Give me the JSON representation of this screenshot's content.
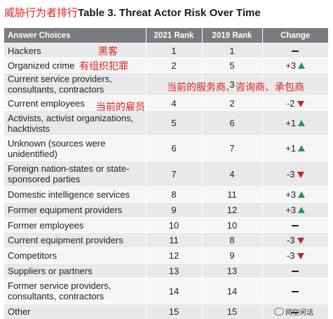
{
  "header": {
    "title_cn": "威胁行为者排行",
    "title_en": "Table 3. Threat Actor Risk Over Time"
  },
  "table": {
    "columns": [
      "Answer Choices",
      "2021 Rank",
      "2019 Rank",
      "Change"
    ],
    "rows": [
      {
        "answer": "Hackers",
        "rank_2021": "1",
        "rank_2019": "1",
        "change": "",
        "direction": "none"
      },
      {
        "answer": "Organized crime",
        "rank_2021": "2",
        "rank_2019": "5",
        "change": "+3",
        "direction": "up"
      },
      {
        "answer": "Current service providers, consultants, contractors",
        "rank_2021": "",
        "rank_2019": "3",
        "change": "",
        "direction": "hidden"
      },
      {
        "answer": "Current employees",
        "rank_2021": "4",
        "rank_2019": "2",
        "change": "-2",
        "direction": "down"
      },
      {
        "answer": "Activists, activist organizations, hacktivists",
        "rank_2021": "5",
        "rank_2019": "6",
        "change": "+1",
        "direction": "up"
      },
      {
        "answer": "Unknown (sources were unidentified)",
        "rank_2021": "6",
        "rank_2019": "7",
        "change": "+1",
        "direction": "up"
      },
      {
        "answer": "Foreign nation-states or state-sponsored parties",
        "rank_2021": "7",
        "rank_2019": "4",
        "change": "-3",
        "direction": "down"
      },
      {
        "answer": "Domestic intelligence services",
        "rank_2021": "8",
        "rank_2019": "11",
        "change": "+3",
        "direction": "up"
      },
      {
        "answer": "Former equipment providers",
        "rank_2021": "9",
        "rank_2019": "12",
        "change": "+3",
        "direction": "up"
      },
      {
        "answer": "Former employees",
        "rank_2021": "10",
        "rank_2019": "10",
        "change": "",
        "direction": "none"
      },
      {
        "answer": "Current equipment providers",
        "rank_2021": "11",
        "rank_2019": "8",
        "change": "-3",
        "direction": "down"
      },
      {
        "answer": "Competitors",
        "rank_2021": "12",
        "rank_2019": "9",
        "change": "-3",
        "direction": "down"
      },
      {
        "answer": "Suppliers or partners",
        "rank_2021": "13",
        "rank_2019": "13",
        "change": "",
        "direction": "none"
      },
      {
        "answer": "Former service providers, consultants, contractors",
        "rank_2021": "14",
        "rank_2019": "14",
        "change": "",
        "direction": "none"
      },
      {
        "answer": "Other",
        "rank_2021": "15",
        "rank_2019": "15",
        "change": "",
        "direction": "none"
      }
    ]
  },
  "annotations": {
    "hackers": "黑客",
    "organized_crime": "有组织犯罪",
    "service_providers": "当前的服务商、咨询商、承包商",
    "current_employees": "当前的雇员"
  },
  "watermark": "网空闲话",
  "colors": {
    "header_bg": "#7a7c80",
    "row_odd": "#e9e9ea",
    "row_even": "#f6f6f6",
    "up": "#1f9a4a",
    "down": "#c0282a",
    "annotation": "#e02020"
  }
}
